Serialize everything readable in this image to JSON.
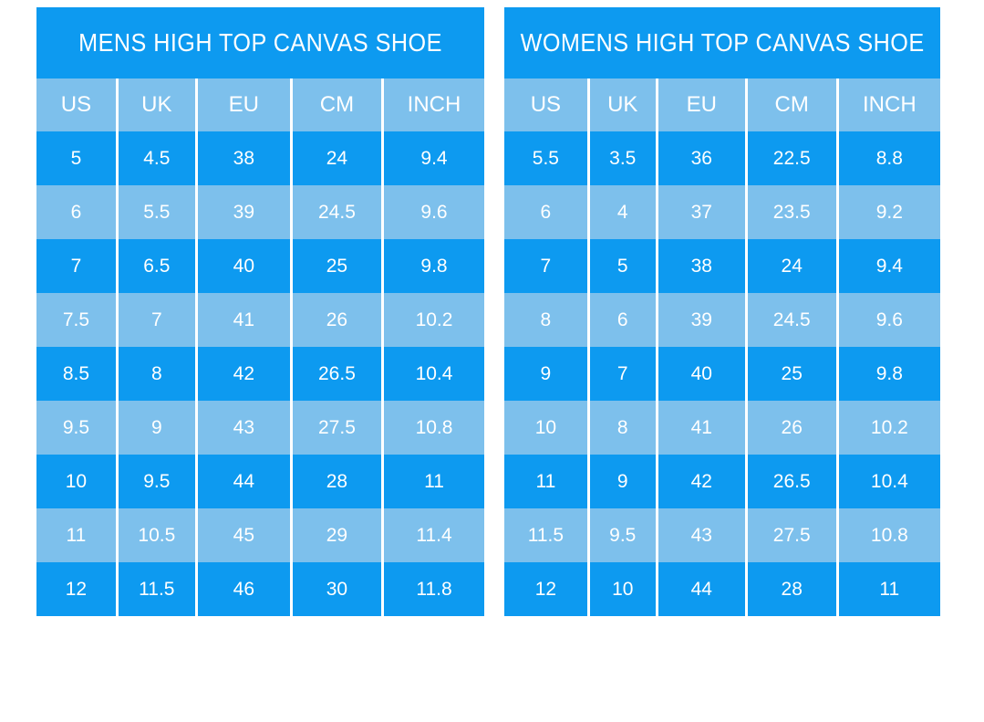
{
  "chart_data": [
    {
      "type": "table",
      "title": "MENS HIGH TOP CANVAS SHOE",
      "columns": [
        "US",
        "UK",
        "EU",
        "CM",
        "INCH"
      ],
      "rows": [
        [
          "5",
          "4.5",
          "38",
          "24",
          "9.4"
        ],
        [
          "6",
          "5.5",
          "39",
          "24.5",
          "9.6"
        ],
        [
          "7",
          "6.5",
          "40",
          "25",
          "9.8"
        ],
        [
          "7.5",
          "7",
          "41",
          "26",
          "10.2"
        ],
        [
          "8.5",
          "8",
          "42",
          "26.5",
          "10.4"
        ],
        [
          "9.5",
          "9",
          "43",
          "27.5",
          "10.8"
        ],
        [
          "10",
          "9.5",
          "44",
          "28",
          "11"
        ],
        [
          "11",
          "10.5",
          "45",
          "29",
          "11.4"
        ],
        [
          "12",
          "11.5",
          "46",
          "30",
          "11.8"
        ]
      ]
    },
    {
      "type": "table",
      "title": "WOMENS HIGH TOP CANVAS SHOE",
      "columns": [
        "US",
        "UK",
        "EU",
        "CM",
        "INCH"
      ],
      "rows": [
        [
          "5.5",
          "3.5",
          "36",
          "22.5",
          "8.8"
        ],
        [
          "6",
          "4",
          "37",
          "23.5",
          "9.2"
        ],
        [
          "7",
          "5",
          "38",
          "24",
          "9.4"
        ],
        [
          "8",
          "6",
          "39",
          "24.5",
          "9.6"
        ],
        [
          "9",
          "7",
          "40",
          "25",
          "9.8"
        ],
        [
          "10",
          "8",
          "41",
          "26",
          "10.2"
        ],
        [
          "11",
          "9",
          "42",
          "26.5",
          "10.4"
        ],
        [
          "11.5",
          "9.5",
          "43",
          "27.5",
          "10.8"
        ],
        [
          "12",
          "10",
          "44",
          "28",
          "11"
        ]
      ]
    }
  ],
  "colors": {
    "primary_blue": "#0d9af0",
    "light_blue": "#7dc0ec",
    "text_white": "#ffffff",
    "divider_white": "#ffffff",
    "page_background": "#ffffff"
  }
}
